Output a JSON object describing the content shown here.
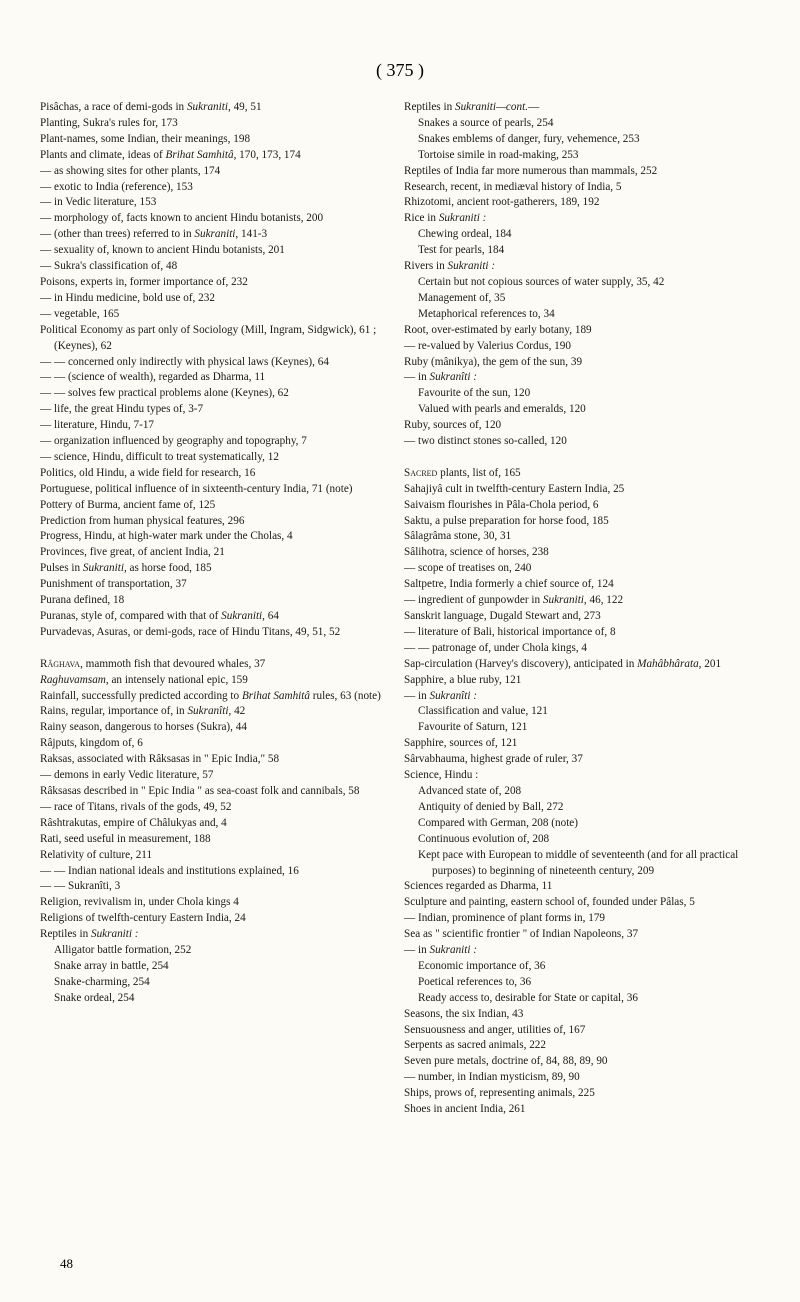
{
  "pageNumTop": "( 375 )",
  "pageNumBottom": "48",
  "col1": [
    {
      "t": "Pisâchas, a race of demi-gods in <i>Sukraniti</i>, 49, 51",
      "l": 0
    },
    {
      "t": "Planting, Sukra's rules for, 173",
      "l": 0
    },
    {
      "t": "Plant-names, some Indian, their meanings, 198",
      "l": 0
    },
    {
      "t": "Plants and climate, ideas of <i>Brihat Samhitâ</i>, 170, 173, 174",
      "l": 0
    },
    {
      "t": "— as showing sites for other plants, 174",
      "l": 0
    },
    {
      "t": "— exotic to India (reference), 153",
      "l": 0
    },
    {
      "t": "— in Vedic literature, 153",
      "l": 0
    },
    {
      "t": "— morphology of, facts known to ancient Hindu botanists, 200",
      "l": 0
    },
    {
      "t": "— (other than trees) referred to in <i>Sukraniti</i>, 141-3",
      "l": 0
    },
    {
      "t": "— sexuality of, known to ancient Hindu botanists, 201",
      "l": 0
    },
    {
      "t": "— Sukra's classification of, 48",
      "l": 0
    },
    {
      "t": "Poisons, experts in, former importance of, 232",
      "l": 0
    },
    {
      "t": "— in Hindu medicine, bold use of, 232",
      "l": 0
    },
    {
      "t": "— vegetable, 165",
      "l": 0
    },
    {
      "t": "Political Economy as part only of Sociology (Mill, Ingram, Sidgwick), 61 ; (Keynes), 62",
      "l": 0
    },
    {
      "t": "— — concerned only indirectly with physical laws (Keynes), 64",
      "l": 0
    },
    {
      "t": "— — (science of wealth), regarded as Dharma, 11",
      "l": 0
    },
    {
      "t": "— — solves few practical problems alone (Keynes), 62",
      "l": 0
    },
    {
      "t": "— life, the great Hindu types of, 3-7",
      "l": 0
    },
    {
      "t": "— literature, Hindu, 7-17",
      "l": 0
    },
    {
      "t": "— organization influenced by geography and topography, 7",
      "l": 0
    },
    {
      "t": "— science, Hindu, difficult to treat systematically, 12",
      "l": 0
    },
    {
      "t": "Politics, old Hindu, a wide field for research, 16",
      "l": 0
    },
    {
      "t": "Portuguese, political influence of in sixteenth-century India, 71 (note)",
      "l": 0
    },
    {
      "t": "Pottery of Burma, ancient fame of, 125",
      "l": 0
    },
    {
      "t": "Prediction from human physical features, 296",
      "l": 0
    },
    {
      "t": "Progress, Hindu, at high-water mark under the Cholas, 4",
      "l": 0
    },
    {
      "t": "Provinces, five great, of ancient India, 21",
      "l": 0
    },
    {
      "t": "Pulses in <i>Sukraniti</i>, as horse food, 185",
      "l": 0
    },
    {
      "t": "Punishment of transportation, 37",
      "l": 0
    },
    {
      "t": "Purana defined, 18",
      "l": 0
    },
    {
      "t": "Puranas, style of, compared with that of <i>Sukraniti</i>, 64",
      "l": 0
    },
    {
      "t": "Purvadevas, Asuras, or demi-gods, race of Hindu Titans, 49, 51, 52",
      "l": 0
    },
    {
      "t": "&nbsp;",
      "l": 0
    },
    {
      "t": "<sc>Râghava</sc>, mammoth fish that devoured whales, 37",
      "l": 0
    },
    {
      "t": "<i>Raghuvamsam</i>, an intensely national epic, 159",
      "l": 0
    },
    {
      "t": "Rainfall, successfully predicted according to <i>Brihat Samhitâ</i> rules, 63 (note)",
      "l": 0
    },
    {
      "t": "Rains, regular, importance of, in <i>Sukranîti</i>, 42",
      "l": 0
    },
    {
      "t": "Rainy season, dangerous to horses (Sukra), 44",
      "l": 0
    },
    {
      "t": "Râjputs, kingdom of, 6",
      "l": 0
    },
    {
      "t": "Raksas, associated with Râksasas in \" Epic India,\" 58",
      "l": 0
    },
    {
      "t": "— demons in early Vedic literature, 57",
      "l": 0
    },
    {
      "t": "Râksasas described in \" Epic India \" as sea-coast folk and cannibals, 58",
      "l": 0
    },
    {
      "t": "— race of Titans, rivals of the gods, 49, 52",
      "l": 0
    },
    {
      "t": "Râshtrakutas, empire of Châlukyas and, 4",
      "l": 0
    },
    {
      "t": "Rati, seed useful in measurement, 188",
      "l": 0
    },
    {
      "t": "Relativity of culture, 211",
      "l": 0
    },
    {
      "t": "— — Indian national ideals and institutions explained, 16",
      "l": 0
    },
    {
      "t": "— — Sukranîti, 3",
      "l": 0
    },
    {
      "t": "Religion, revivalism in, under Chola kings 4",
      "l": 0
    },
    {
      "t": "Religions of twelfth-century Eastern India, 24",
      "l": 0
    },
    {
      "t": "Reptiles in <i>Sukraniti :</i>",
      "l": 0
    },
    {
      "t": "Alligator battle formation, 252",
      "l": 1
    },
    {
      "t": "Snake array in battle, 254",
      "l": 1
    },
    {
      "t": "Snake-charming, 254",
      "l": 1
    },
    {
      "t": "Snake ordeal, 254",
      "l": 1
    }
  ],
  "col2": [
    {
      "t": "Reptiles in <i>Sukraniti—cont.</i>—",
      "l": 0
    },
    {
      "t": "Snakes a source of pearls, 254",
      "l": 1
    },
    {
      "t": "Snakes emblems of danger, fury, vehemence, 253",
      "l": 1
    },
    {
      "t": "Tortoise simile in road-making, 253",
      "l": 1
    },
    {
      "t": "Reptiles of India far more numerous than mammals, 252",
      "l": 0
    },
    {
      "t": "Research, recent, in mediæval history of India, 5",
      "l": 0
    },
    {
      "t": "Rhizotomi, ancient root-gatherers, 189, 192",
      "l": 0
    },
    {
      "t": "Rice in <i>Sukraniti :</i>",
      "l": 0
    },
    {
      "t": "Chewing ordeal, 184",
      "l": 1
    },
    {
      "t": "Test for pearls, 184",
      "l": 1
    },
    {
      "t": "Rivers in <i>Sukraniti :</i>",
      "l": 0
    },
    {
      "t": "Certain but not copious sources of water supply, 35, 42",
      "l": 1
    },
    {
      "t": "Management of, 35",
      "l": 1
    },
    {
      "t": "Metaphorical references to, 34",
      "l": 1
    },
    {
      "t": "Root, over-estimated by early botany, 189",
      "l": 0
    },
    {
      "t": "— re-valued by Valerius Cordus, 190",
      "l": 0
    },
    {
      "t": "Ruby (mânikya), the gem of the sun, 39",
      "l": 0
    },
    {
      "t": "— in <i>Sukranîti :</i>",
      "l": 0
    },
    {
      "t": "Favourite of the sun, 120",
      "l": 1
    },
    {
      "t": "Valued with pearls and emeralds, 120",
      "l": 1
    },
    {
      "t": "Ruby, sources of, 120",
      "l": 0
    },
    {
      "t": "— two distinct stones so-called, 120",
      "l": 0
    },
    {
      "t": "&nbsp;",
      "l": 0
    },
    {
      "t": "<sc>Sacred</sc> plants, list of, 165",
      "l": 0
    },
    {
      "t": "Sahajiyâ cult in twelfth-century Eastern India, 25",
      "l": 0
    },
    {
      "t": "Saivaism flourishes in Pâla-Chola period, 6",
      "l": 0
    },
    {
      "t": "Saktu, a pulse preparation for horse food, 185",
      "l": 0
    },
    {
      "t": "Sâlagrâma stone, 30, 31",
      "l": 0
    },
    {
      "t": "Sâlihotra, science of horses, 238",
      "l": 0
    },
    {
      "t": "— scope of treatises on, 240",
      "l": 0
    },
    {
      "t": "Saltpetre, India formerly a chief source of, 124",
      "l": 0
    },
    {
      "t": "— ingredient of gunpowder in <i>Sukraniti</i>, 46, 122",
      "l": 0
    },
    {
      "t": "Sanskrit language, Dugald Stewart and, 273",
      "l": 0
    },
    {
      "t": "— literature of Bali, historical importance of, 8",
      "l": 0
    },
    {
      "t": "— — patronage of, under Chola kings, 4",
      "l": 0
    },
    {
      "t": "Sap-circulation (Harvey's discovery), anticipated in <i>Mahâbhârata</i>, 201",
      "l": 0
    },
    {
      "t": "Sapphire, a blue ruby, 121",
      "l": 0
    },
    {
      "t": "— in <i>Sukranîti :</i>",
      "l": 0
    },
    {
      "t": "Classification and value, 121",
      "l": 1
    },
    {
      "t": "Favourite of Saturn, 121",
      "l": 1
    },
    {
      "t": "Sapphire, sources of, 121",
      "l": 0
    },
    {
      "t": "Sârvabhauma, highest grade of ruler, 37",
      "l": 0
    },
    {
      "t": "Science, Hindu :",
      "l": 0
    },
    {
      "t": "Advanced state of, 208",
      "l": 1
    },
    {
      "t": "Antiquity of denied by Ball, 272",
      "l": 1
    },
    {
      "t": "Compared with German, 208 (note)",
      "l": 1
    },
    {
      "t": "Continuous evolution of, 208",
      "l": 1
    },
    {
      "t": "Kept pace with European to middle of seventeenth (and for all practical purposes) to beginning of nineteenth century, 209",
      "l": 1
    },
    {
      "t": "Sciences regarded as Dharma, 11",
      "l": 0
    },
    {
      "t": "Sculpture and painting, eastern school of, founded under Pâlas, 5",
      "l": 0
    },
    {
      "t": "— Indian, prominence of plant forms in, 179",
      "l": 0
    },
    {
      "t": "Sea as \" scientific frontier \" of Indian Napoleons, 37",
      "l": 0
    },
    {
      "t": "— in <i>Sukraniti :</i>",
      "l": 0
    },
    {
      "t": "Economic importance of, 36",
      "l": 1
    },
    {
      "t": "Poetical references to, 36",
      "l": 1
    },
    {
      "t": "Ready access to, desirable for State or capital, 36",
      "l": 1
    },
    {
      "t": "Seasons, the six Indian, 43",
      "l": 0
    },
    {
      "t": "Sensuousness and anger, utilities of, 167",
      "l": 0
    },
    {
      "t": "Serpents as sacred animals, 222",
      "l": 0
    },
    {
      "t": "Seven pure metals, doctrine of, 84, 88, 89, 90",
      "l": 0
    },
    {
      "t": "— number, in Indian mysticism, 89, 90",
      "l": 0
    },
    {
      "t": "Ships, prows of, representing animals, 225",
      "l": 0
    },
    {
      "t": "Shoes in ancient India, 261",
      "l": 0
    }
  ]
}
